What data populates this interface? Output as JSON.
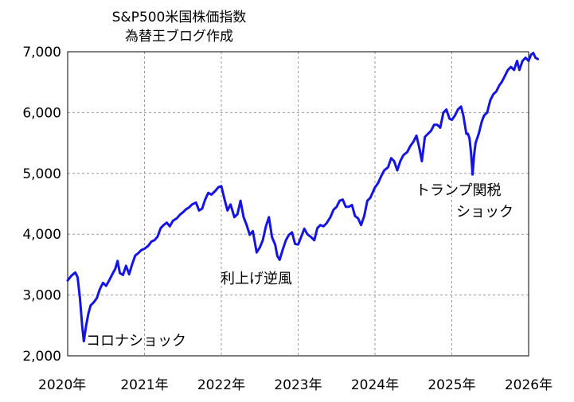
{
  "chart_data": {
    "type": "line",
    "title": "S&P500米国株価指数",
    "subtitle": "為替王ブログ作成",
    "xlabel": "",
    "ylabel": "",
    "xlim": [
      2020.0,
      2026.0
    ],
    "ylim": [
      2000,
      7000
    ],
    "grid": true,
    "legend": "none",
    "colors": {
      "series": "#1414e6",
      "grid": "#9a9a9a"
    },
    "x_tick_labels": [
      "2020年",
      "2021年",
      "2022年",
      "2023年",
      "2024年",
      "2025年",
      "2026年"
    ],
    "x_tick_values": [
      2020,
      2021,
      2022,
      2023,
      2024,
      2025,
      2026
    ],
    "y_tick_labels": [
      "2,000",
      "3,000",
      "4,000",
      "5,000",
      "6,000",
      "7,000"
    ],
    "y_tick_values": [
      2000,
      3000,
      4000,
      5000,
      6000,
      7000
    ],
    "annotations": [
      {
        "text": "コロナショック",
        "x": 2020.25,
        "y": 2400
      },
      {
        "text": "利上げ逆風",
        "x": 2022.07,
        "y": 3250
      },
      {
        "text": "トランプ関税",
        "x": 2024.4,
        "y": 4750
      },
      {
        "text": "ショック",
        "x": 2024.9,
        "y": 4420
      }
    ],
    "series": [
      {
        "values": [
          [
            2020.0,
            3240
          ],
          [
            2020.05,
            3320
          ],
          [
            2020.1,
            3370
          ],
          [
            2020.13,
            3290
          ],
          [
            2020.16,
            2950
          ],
          [
            2020.19,
            2480
          ],
          [
            2020.21,
            2240
          ],
          [
            2020.24,
            2500
          ],
          [
            2020.27,
            2700
          ],
          [
            2020.3,
            2830
          ],
          [
            2020.34,
            2880
          ],
          [
            2020.38,
            2950
          ],
          [
            2020.42,
            3100
          ],
          [
            2020.46,
            3200
          ],
          [
            2020.5,
            3150
          ],
          [
            2020.54,
            3240
          ],
          [
            2020.58,
            3340
          ],
          [
            2020.62,
            3430
          ],
          [
            2020.65,
            3560
          ],
          [
            2020.68,
            3360
          ],
          [
            2020.72,
            3330
          ],
          [
            2020.76,
            3480
          ],
          [
            2020.8,
            3340
          ],
          [
            2020.84,
            3510
          ],
          [
            2020.88,
            3650
          ],
          [
            2020.92,
            3690
          ],
          [
            2020.96,
            3740
          ],
          [
            2021.0,
            3760
          ],
          [
            2021.05,
            3810
          ],
          [
            2021.09,
            3880
          ],
          [
            2021.13,
            3900
          ],
          [
            2021.17,
            3960
          ],
          [
            2021.21,
            4100
          ],
          [
            2021.25,
            4150
          ],
          [
            2021.29,
            4190
          ],
          [
            2021.33,
            4130
          ],
          [
            2021.37,
            4220
          ],
          [
            2021.42,
            4260
          ],
          [
            2021.46,
            4320
          ],
          [
            2021.5,
            4360
          ],
          [
            2021.54,
            4410
          ],
          [
            2021.58,
            4440
          ],
          [
            2021.62,
            4490
          ],
          [
            2021.67,
            4520
          ],
          [
            2021.71,
            4390
          ],
          [
            2021.75,
            4420
          ],
          [
            2021.79,
            4570
          ],
          [
            2021.83,
            4680
          ],
          [
            2021.87,
            4650
          ],
          [
            2021.92,
            4710
          ],
          [
            2021.96,
            4770
          ],
          [
            2022.0,
            4790
          ],
          [
            2022.04,
            4580
          ],
          [
            2022.08,
            4390
          ],
          [
            2022.12,
            4490
          ],
          [
            2022.17,
            4280
          ],
          [
            2022.21,
            4330
          ],
          [
            2022.25,
            4550
          ],
          [
            2022.29,
            4280
          ],
          [
            2022.33,
            4150
          ],
          [
            2022.37,
            3990
          ],
          [
            2022.41,
            4050
          ],
          [
            2022.46,
            3700
          ],
          [
            2022.5,
            3780
          ],
          [
            2022.54,
            3900
          ],
          [
            2022.58,
            4130
          ],
          [
            2022.62,
            4280
          ],
          [
            2022.66,
            3950
          ],
          [
            2022.7,
            3830
          ],
          [
            2022.73,
            3640
          ],
          [
            2022.76,
            3580
          ],
          [
            2022.8,
            3750
          ],
          [
            2022.84,
            3900
          ],
          [
            2022.88,
            3990
          ],
          [
            2022.92,
            4030
          ],
          [
            2022.96,
            3840
          ],
          [
            2023.0,
            3830
          ],
          [
            2023.04,
            3960
          ],
          [
            2023.08,
            4090
          ],
          [
            2023.12,
            4000
          ],
          [
            2023.17,
            3950
          ],
          [
            2023.21,
            3900
          ],
          [
            2023.25,
            4100
          ],
          [
            2023.29,
            4150
          ],
          [
            2023.33,
            4130
          ],
          [
            2023.37,
            4180
          ],
          [
            2023.42,
            4280
          ],
          [
            2023.46,
            4400
          ],
          [
            2023.5,
            4450
          ],
          [
            2023.54,
            4550
          ],
          [
            2023.58,
            4570
          ],
          [
            2023.62,
            4450
          ],
          [
            2023.66,
            4450
          ],
          [
            2023.7,
            4480
          ],
          [
            2023.74,
            4300
          ],
          [
            2023.78,
            4260
          ],
          [
            2023.82,
            4150
          ],
          [
            2023.86,
            4300
          ],
          [
            2023.9,
            4550
          ],
          [
            2023.94,
            4600
          ],
          [
            2024.0,
            4770
          ],
          [
            2024.04,
            4840
          ],
          [
            2024.08,
            4950
          ],
          [
            2024.12,
            5050
          ],
          [
            2024.17,
            5100
          ],
          [
            2024.21,
            5250
          ],
          [
            2024.25,
            5200
          ],
          [
            2024.29,
            5050
          ],
          [
            2024.33,
            5200
          ],
          [
            2024.37,
            5300
          ],
          [
            2024.42,
            5350
          ],
          [
            2024.46,
            5450
          ],
          [
            2024.5,
            5520
          ],
          [
            2024.54,
            5620
          ],
          [
            2024.58,
            5400
          ],
          [
            2024.61,
            5200
          ],
          [
            2024.65,
            5600
          ],
          [
            2024.69,
            5650
          ],
          [
            2024.73,
            5700
          ],
          [
            2024.77,
            5800
          ],
          [
            2024.81,
            5800
          ],
          [
            2024.85,
            5750
          ],
          [
            2024.89,
            6000
          ],
          [
            2024.93,
            6050
          ],
          [
            2024.97,
            5900
          ],
          [
            2025.0,
            5880
          ],
          [
            2025.04,
            5950
          ],
          [
            2025.08,
            6050
          ],
          [
            2025.12,
            6100
          ],
          [
            2025.15,
            5950
          ],
          [
            2025.19,
            5650
          ],
          [
            2025.21,
            5650
          ],
          [
            2025.23,
            5580
          ],
          [
            2025.25,
            5350
          ],
          [
            2025.27,
            4980
          ],
          [
            2025.29,
            5300
          ],
          [
            2025.31,
            5500
          ],
          [
            2025.35,
            5650
          ],
          [
            2025.39,
            5850
          ],
          [
            2025.42,
            5950
          ],
          [
            2025.46,
            6000
          ],
          [
            2025.5,
            6200
          ],
          [
            2025.54,
            6300
          ],
          [
            2025.58,
            6350
          ],
          [
            2025.62,
            6450
          ],
          [
            2025.65,
            6500
          ],
          [
            2025.69,
            6600
          ],
          [
            2025.73,
            6700
          ],
          [
            2025.77,
            6750
          ],
          [
            2025.81,
            6700
          ],
          [
            2025.85,
            6850
          ],
          [
            2025.88,
            6700
          ],
          [
            2025.92,
            6850
          ],
          [
            2025.96,
            6900
          ],
          [
            2026.0,
            6850
          ],
          [
            2026.03,
            6950
          ],
          [
            2026.06,
            6980
          ],
          [
            2026.09,
            6900
          ],
          [
            2026.12,
            6880
          ]
        ]
      }
    ]
  }
}
